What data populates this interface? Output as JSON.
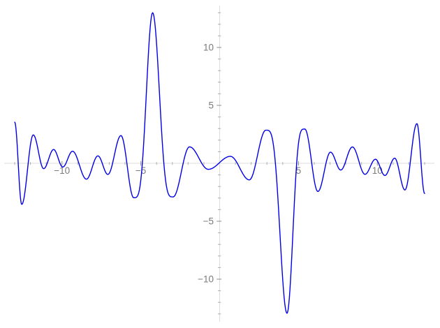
{
  "figure": {
    "background": "#ffffff",
    "title": ""
  },
  "chart_data": {
    "type": "line",
    "title": "",
    "xlabel": "",
    "ylabel": "",
    "grid": false,
    "legend": false,
    "axes_style": {
      "axis_line_color": "#dcdcdc",
      "major_tick_color": "#8e8e8e",
      "minor_tick_color": "#adadad",
      "label_color": "#7a7a7a"
    },
    "x_range": [
      -13,
      13
    ],
    "y_range": [
      -13.8,
      13.7
    ],
    "x_major_ticks": [
      {
        "value": -10,
        "label": "−10"
      },
      {
        "value": -5,
        "label": "−5"
      },
      {
        "value": 5,
        "label": "5"
      },
      {
        "value": 10,
        "label": "10"
      }
    ],
    "y_major_ticks": [
      {
        "value": 10,
        "label": "10"
      },
      {
        "value": 5,
        "label": "5"
      },
      {
        "value": -5,
        "label": "−5"
      },
      {
        "value": -10,
        "label": "−10"
      }
    ],
    "x_minor_tick_step": 1,
    "y_minor_tick_step": 1,
    "interpolation": "cosine-through-extrema",
    "series": [
      {
        "name": "blue-oscillatory-curve",
        "color": "#0000e6",
        "stroke_width": 1.4,
        "anchor_points": [
          [
            -13.0,
            3.55,
            0
          ],
          [
            -12.55,
            -3.54,
            0
          ],
          [
            -11.82,
            2.45,
            0
          ],
          [
            -11.16,
            -0.46,
            0
          ],
          [
            -10.53,
            1.19,
            0
          ],
          [
            -9.95,
            -0.32,
            0
          ],
          [
            -9.33,
            1.04,
            0
          ],
          [
            -8.45,
            -1.37,
            0
          ],
          [
            -7.72,
            0.64,
            0
          ],
          [
            -7.09,
            -0.96,
            0
          ],
          [
            -6.26,
            2.39,
            0
          ],
          [
            -5.45,
            -2.97,
            0
          ],
          [
            -4.25,
            13.0,
            1
          ],
          [
            -2.95,
            -2.9,
            0
          ],
          [
            -1.91,
            1.42,
            0
          ],
          [
            -0.72,
            -0.52,
            0
          ],
          [
            0.68,
            0.6,
            0
          ],
          [
            1.88,
            -1.43,
            0
          ],
          [
            2.93,
            2.86,
            0
          ],
          [
            4.27,
            -12.95,
            1
          ],
          [
            5.4,
            2.96,
            0
          ],
          [
            6.23,
            -2.43,
            0
          ],
          [
            7.03,
            0.96,
            0
          ],
          [
            7.68,
            -0.58,
            0
          ],
          [
            8.42,
            1.41,
            0
          ],
          [
            9.22,
            -0.95,
            0
          ],
          [
            9.88,
            0.35,
            0
          ],
          [
            10.48,
            -1.05,
            0
          ],
          [
            11.1,
            0.44,
            0
          ],
          [
            11.75,
            -2.3,
            0
          ],
          [
            12.51,
            3.42,
            0
          ],
          [
            13.0,
            -2.6,
            0
          ]
        ]
      }
    ]
  }
}
